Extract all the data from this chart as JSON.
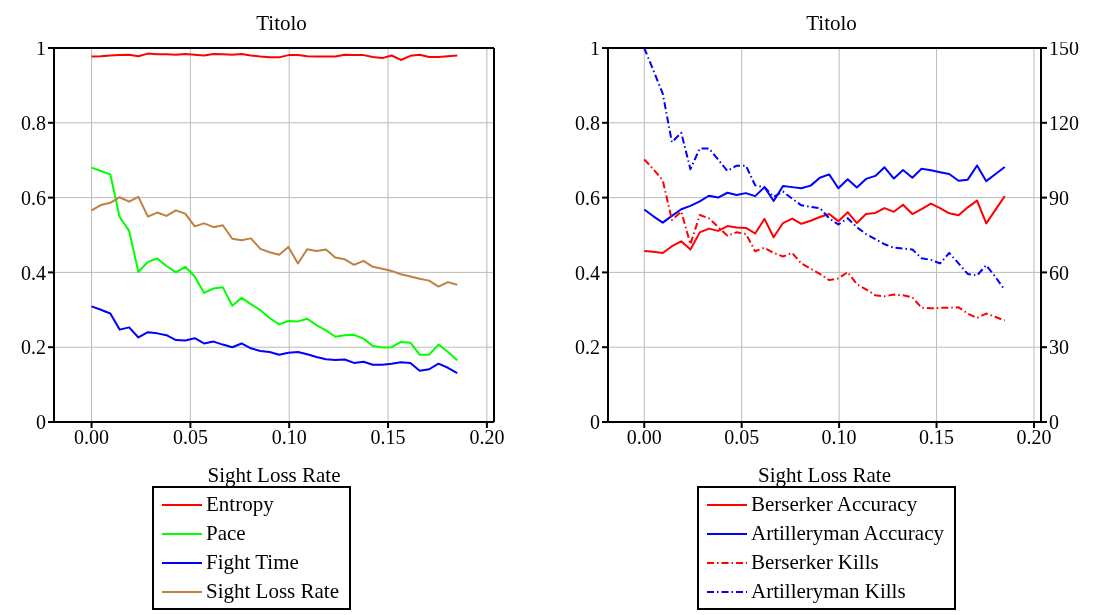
{
  "chart_data": [
    {
      "type": "line",
      "title": "Titolo",
      "xlabel": "Sight Loss Rate",
      "x": [
        0,
        0.0047,
        0.0095,
        0.0142,
        0.019,
        0.0237,
        0.0285,
        0.0332,
        0.0379,
        0.0427,
        0.0474,
        0.0522,
        0.0569,
        0.0617,
        0.0664,
        0.0712,
        0.0759,
        0.0806,
        0.0854,
        0.0901,
        0.0949,
        0.0996,
        0.1044,
        0.1091,
        0.1138,
        0.1186,
        0.1233,
        0.1281,
        0.1328,
        0.1376,
        0.1423,
        0.1471,
        0.1518,
        0.1565,
        0.1613,
        0.166,
        0.1708,
        0.1755,
        0.1803,
        0.185
      ],
      "series": [
        {
          "name": "Entropy",
          "color": "#ff0000",
          "line_style": "solid",
          "values": [
            0.977,
            0.978,
            0.98,
            0.981,
            0.982,
            0.978,
            0.985,
            0.983,
            0.983,
            0.982,
            0.984,
            0.982,
            0.98,
            0.984,
            0.983,
            0.982,
            0.984,
            0.98,
            0.977,
            0.975,
            0.975,
            0.981,
            0.981,
            0.978,
            0.977,
            0.977,
            0.977,
            0.982,
            0.981,
            0.981,
            0.976,
            0.973,
            0.98,
            0.968,
            0.979,
            0.982,
            0.976,
            0.976,
            0.978,
            0.98
          ]
        },
        {
          "name": "Pace",
          "color": "#00ff00",
          "line_style": "solid",
          "values": [
            0.68,
            0.671,
            0.662,
            0.548,
            0.511,
            0.401,
            0.428,
            0.437,
            0.417,
            0.4,
            0.415,
            0.389,
            0.345,
            0.357,
            0.36,
            0.311,
            0.332,
            0.315,
            0.299,
            0.278,
            0.261,
            0.27,
            0.269,
            0.276,
            0.259,
            0.245,
            0.228,
            0.232,
            0.233,
            0.223,
            0.203,
            0.199,
            0.2,
            0.214,
            0.212,
            0.18,
            0.18,
            0.207,
            0.187,
            0.165
          ]
        },
        {
          "name": "Fight Time",
          "color": "#0000ff",
          "line_style": "solid",
          "values": [
            0.309,
            0.3,
            0.29,
            0.247,
            0.253,
            0.226,
            0.24,
            0.237,
            0.232,
            0.219,
            0.218,
            0.224,
            0.21,
            0.215,
            0.207,
            0.2,
            0.21,
            0.197,
            0.19,
            0.187,
            0.18,
            0.185,
            0.187,
            0.181,
            0.174,
            0.168,
            0.166,
            0.167,
            0.158,
            0.161,
            0.153,
            0.153,
            0.156,
            0.16,
            0.158,
            0.137,
            0.141,
            0.156,
            0.145,
            0.131
          ]
        },
        {
          "name": "Sight Loss Rate",
          "color": "#bf8040",
          "line_style": "solid",
          "values": [
            0.566,
            0.58,
            0.586,
            0.601,
            0.589,
            0.602,
            0.549,
            0.56,
            0.551,
            0.566,
            0.557,
            0.523,
            0.531,
            0.521,
            0.526,
            0.49,
            0.486,
            0.491,
            0.463,
            0.454,
            0.447,
            0.468,
            0.424,
            0.462,
            0.457,
            0.461,
            0.44,
            0.435,
            0.42,
            0.431,
            0.415,
            0.41,
            0.404,
            0.395,
            0.389,
            0.383,
            0.378,
            0.362,
            0.374,
            0.367
          ]
        }
      ],
      "xlim": [
        -0.019,
        0.2036
      ],
      "xticks": [
        {
          "value": 0,
          "label": "0.00"
        },
        {
          "value": 0.05,
          "label": "0.05"
        },
        {
          "value": 0.1,
          "label": "0.10"
        },
        {
          "value": 0.15,
          "label": "0.15"
        },
        {
          "value": 0.2,
          "label": "0.20"
        }
      ],
      "ylim": [
        0,
        1
      ],
      "yticks": [
        0,
        0.2,
        0.4,
        0.6,
        0.8,
        1
      ],
      "grid": true,
      "legend": "bottom"
    },
    {
      "type": "line",
      "title": "Titolo",
      "xlabel": "Sight Loss Rate",
      "x": [
        0,
        0.0047,
        0.0095,
        0.0142,
        0.019,
        0.0237,
        0.0285,
        0.0332,
        0.0379,
        0.0427,
        0.0474,
        0.0522,
        0.0569,
        0.0617,
        0.0664,
        0.0712,
        0.0759,
        0.0806,
        0.0854,
        0.0901,
        0.0949,
        0.0996,
        0.1044,
        0.1091,
        0.1138,
        0.1186,
        0.1233,
        0.1281,
        0.1328,
        0.1376,
        0.1423,
        0.1471,
        0.1518,
        0.1565,
        0.1613,
        0.166,
        0.1708,
        0.1755,
        0.1803,
        0.185
      ],
      "series": [
        {
          "name": "Berserker Accuracy",
          "color": "#ff0000",
          "line_style": "solid",
          "values": [
            0.457,
            0.455,
            0.452,
            0.47,
            0.483,
            0.461,
            0.507,
            0.517,
            0.511,
            0.524,
            0.52,
            0.519,
            0.504,
            0.543,
            0.494,
            0.532,
            0.544,
            0.53,
            0.538,
            0.548,
            0.556,
            0.537,
            0.561,
            0.532,
            0.556,
            0.559,
            0.572,
            0.562,
            0.581,
            0.556,
            0.569,
            0.584,
            0.572,
            0.558,
            0.553,
            0.574,
            0.592,
            0.531,
            0.568,
            0.604
          ]
        },
        {
          "name": "Artilleryman Accuracy",
          "color": "#0000ff",
          "line_style": "solid",
          "values": [
            0.568,
            0.55,
            0.533,
            0.551,
            0.569,
            0.578,
            0.59,
            0.605,
            0.6,
            0.613,
            0.607,
            0.612,
            0.604,
            0.628,
            0.591,
            0.631,
            0.628,
            0.625,
            0.632,
            0.653,
            0.662,
            0.625,
            0.649,
            0.627,
            0.65,
            0.658,
            0.681,
            0.651,
            0.674,
            0.653,
            0.677,
            0.673,
            0.668,
            0.663,
            0.645,
            0.648,
            0.686,
            0.644,
            0.663,
            0.682
          ]
        },
        {
          "name": "Berserker Kills",
          "color": "#ff0000",
          "line_style": "dashdot",
          "axis": "y2",
          "values": [
            105.3,
            101.4,
            96.9,
            81,
            84.4,
            71.3,
            83,
            81.7,
            78.2,
            74.7,
            76.1,
            75.4,
            68.5,
            69.9,
            67.8,
            66.4,
            67.8,
            63.6,
            61.5,
            59.4,
            56.9,
            57.6,
            60.1,
            55.3,
            53.2,
            50.8,
            50.4,
            51.1,
            50.8,
            50,
            45.8,
            45.6,
            45.8,
            45.8,
            46,
            43.5,
            41.7,
            43.5,
            42.1,
            40.7
          ]
        },
        {
          "name": "Artilleryman Kills",
          "color": "#0000ff",
          "line_style": "dashdot",
          "axis": "y2",
          "values": [
            150,
            141,
            131.7,
            112.2,
            116,
            101.4,
            109.7,
            109.7,
            105.3,
            100.7,
            102.8,
            102.8,
            94.9,
            94.2,
            90.3,
            92.4,
            89.6,
            86.9,
            86.3,
            85.8,
            81.7,
            79.2,
            81.7,
            78.1,
            75.4,
            73.3,
            71.3,
            69.9,
            69.6,
            69.2,
            65.7,
            65,
            63.6,
            67.8,
            63.6,
            59.4,
            58.8,
            62.9,
            58.1,
            52.9
          ]
        }
      ],
      "xlim": [
        -0.0186,
        0.2036
      ],
      "xticks": [
        {
          "value": 0,
          "label": "0.00"
        },
        {
          "value": 0.05,
          "label": "0.05"
        },
        {
          "value": 0.1,
          "label": "0.10"
        },
        {
          "value": 0.15,
          "label": "0.15"
        },
        {
          "value": 0.2,
          "label": "0.20"
        }
      ],
      "ylim": [
        0,
        1
      ],
      "yticks": [
        0,
        0.2,
        0.4,
        0.6,
        0.8,
        1
      ],
      "y2lim": [
        0,
        150
      ],
      "y2ticks": [
        0,
        30,
        60,
        90,
        120,
        150
      ],
      "grid": true,
      "legend": "bottom"
    }
  ]
}
